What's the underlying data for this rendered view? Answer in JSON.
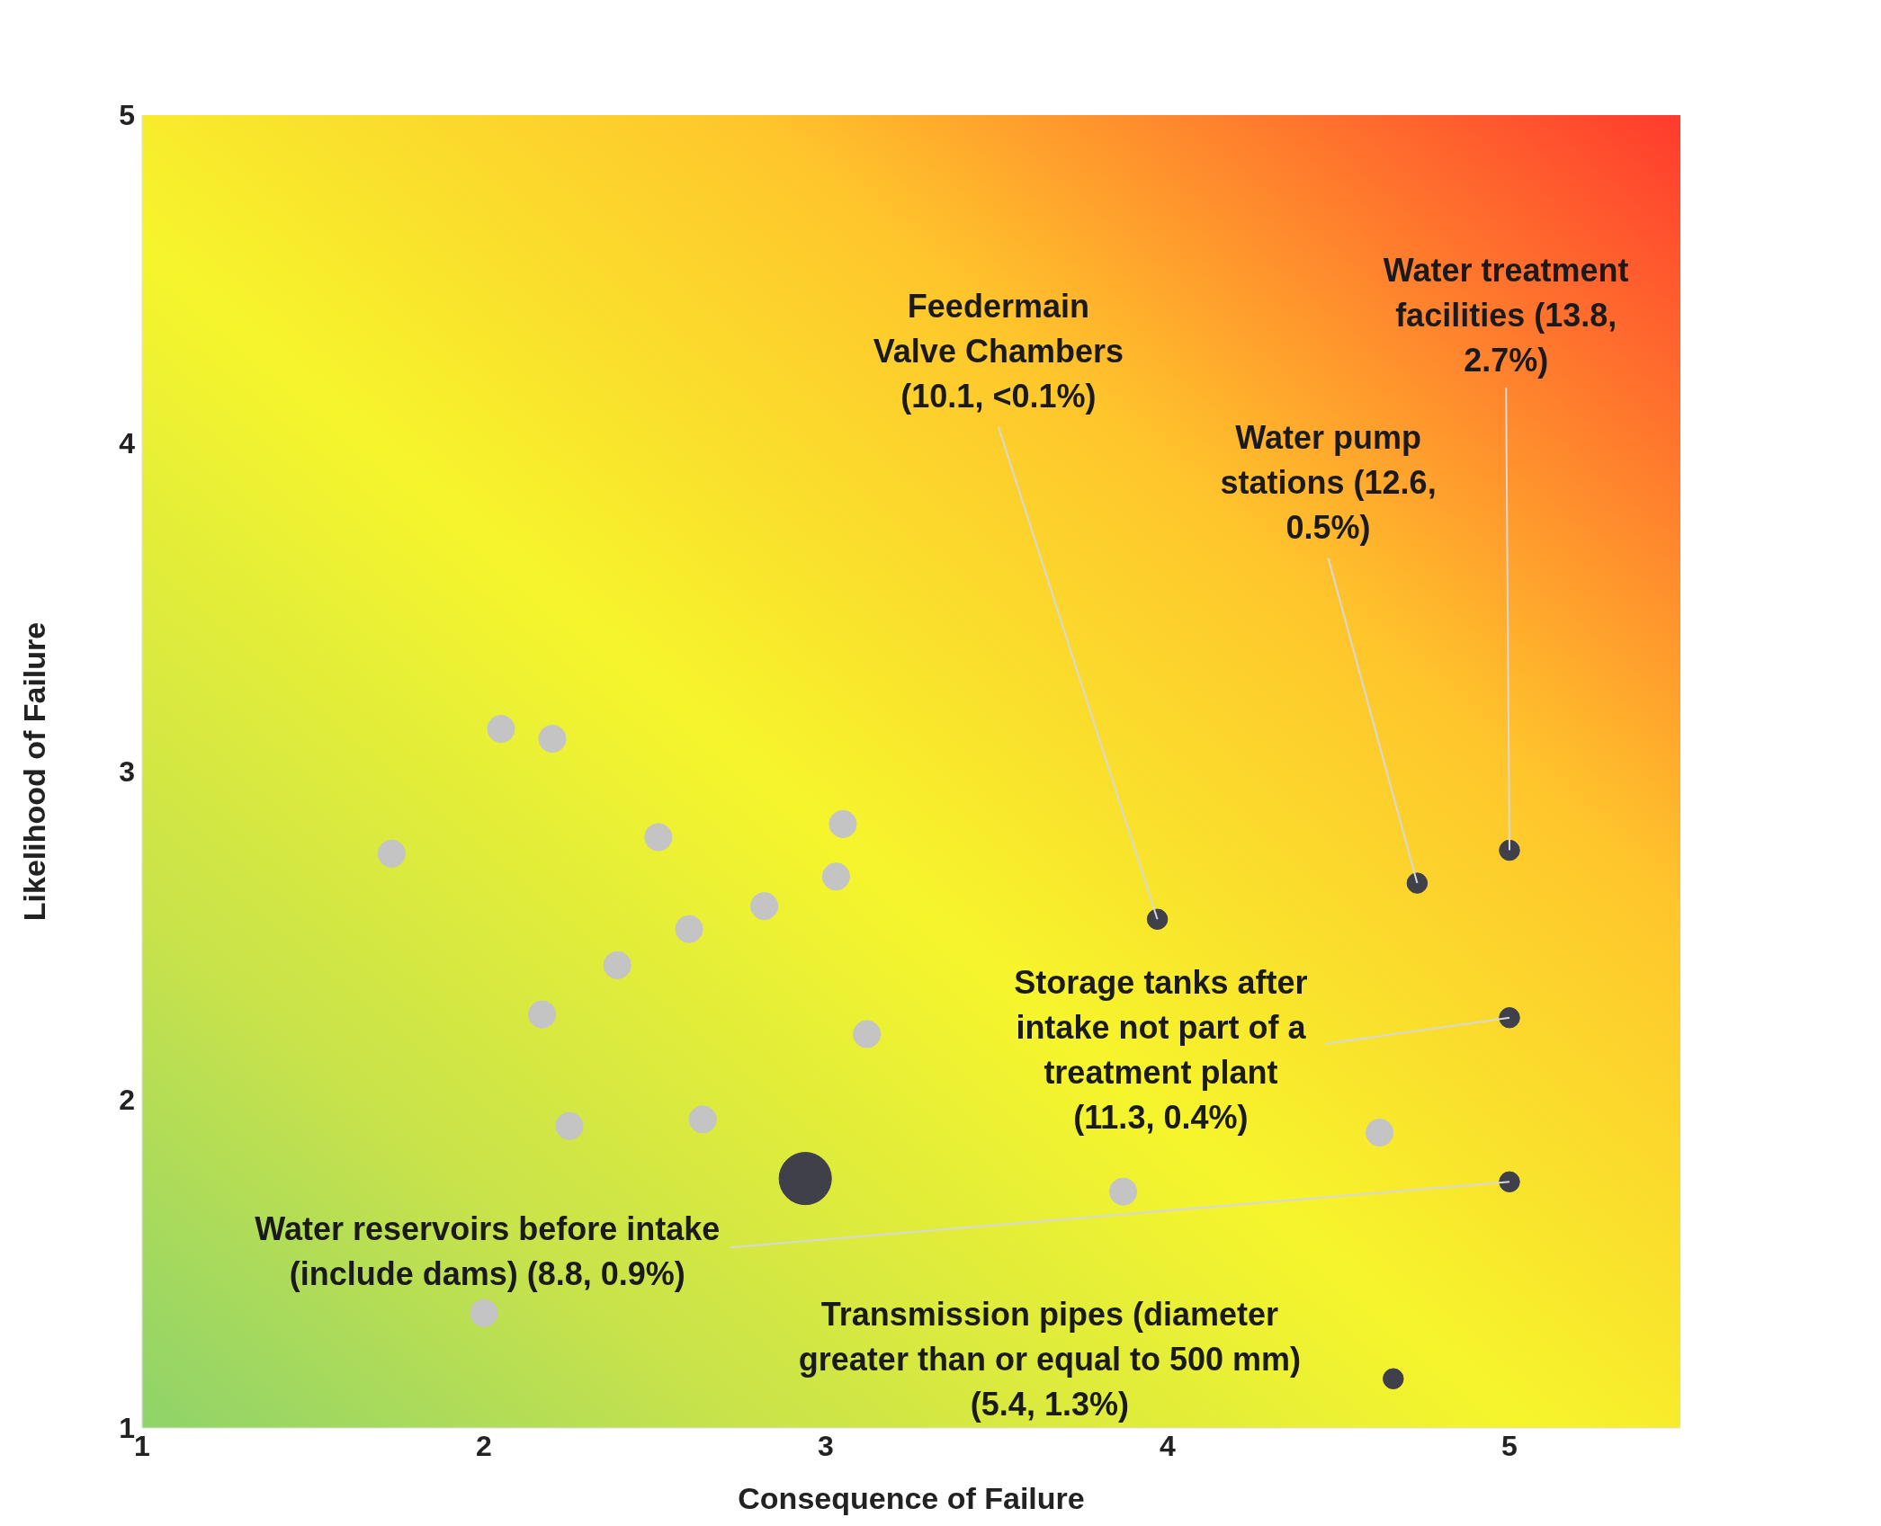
{
  "chart_data": {
    "type": "bubble",
    "xlabel": "Consequence of Failure",
    "ylabel": "Likelihood of Failure",
    "xlim": [
      1,
      5.5
    ],
    "xticks": [
      1,
      2,
      3,
      4,
      5
    ],
    "ylim": [
      1,
      5
    ],
    "yticks": [
      1,
      2,
      3,
      4,
      5
    ],
    "series": [
      {
        "color": "#c4c4c4",
        "x": [
          1.73,
          2.05,
          2.2,
          2.51,
          3.05,
          3.03,
          2.82,
          2.6,
          2.39,
          2.17,
          3.12,
          2.25,
          2.64,
          3.87,
          4.62,
          2.0
        ],
        "values": [
          2.75,
          3.13,
          3.1,
          2.8,
          2.84,
          2.68,
          2.59,
          2.52,
          2.41,
          2.26,
          2.2,
          1.92,
          1.94,
          1.72,
          1.9,
          1.35
        ],
        "sizes": [
          0.27,
          0.27,
          0.27,
          0.27,
          0.27,
          0.27,
          0.27,
          0.27,
          0.27,
          0.27,
          0.27,
          0.27,
          0.27,
          0.27,
          0.27,
          0.27
        ]
      },
      {
        "color": "#3f4049",
        "x": [
          3.97,
          4.73,
          5.0,
          5.0,
          5.0,
          4.66,
          2.94
        ],
        "values": [
          2.55,
          2.66,
          2.76,
          2.25,
          1.75,
          1.15,
          1.76
        ],
        "sizes": [
          0.15,
          0.15,
          0.15,
          0.15,
          0.15,
          0.15,
          1
        ]
      }
    ],
    "annotations": [
      {
        "text": "Feedermain\nValve Chambers\n(10.1, <0.1%)",
        "x": 3.97,
        "y": 2.55
      },
      {
        "text": "Water pump\nstations (12.6,\n0.5%)",
        "x": 4.73,
        "y": 2.66
      },
      {
        "text": "Water treatment\nfacilities (13.8,\n2.7%)",
        "x": 5.0,
        "y": 2.76
      },
      {
        "text": "Storage tanks after\nintake not part of a\ntreatment plant\n(11.3, 0.4%)",
        "x": 5.0,
        "y": 2.25
      },
      {
        "text": "Water reservoirs before intake\n(include dams) (8.8, 0.9%)",
        "x": 5.0,
        "y": 1.75
      },
      "Transmission pipes (diameter\ngreater than or equal to 500 mm)\n(5.4, 1.3%)"
    ]
  }
}
